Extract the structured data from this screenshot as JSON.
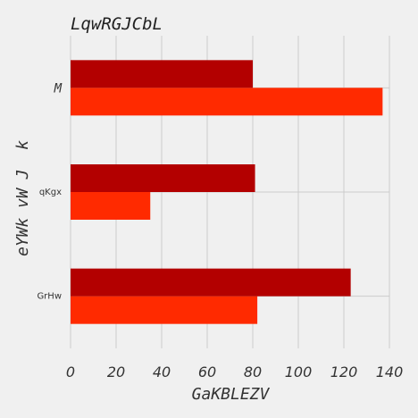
{
  "chart_data": {
    "type": "bar",
    "orientation": "horizontal",
    "title": "LqwRGJCbL",
    "xlabel": "GaKBLEZV",
    "ylabel": "eYWk vW J  k",
    "categories": [
      "GrHw",
      "qKgx",
      "M"
    ],
    "series": [
      {
        "values": [
          82,
          35,
          137
        ],
        "color": "#ff2a00"
      },
      {
        "values": [
          123,
          81,
          80
        ],
        "color": "#b30000"
      }
    ],
    "xlim": [
      0,
      140
    ],
    "xticks": [
      0,
      20,
      40,
      60,
      80,
      100,
      120,
      140
    ],
    "grid": true,
    "legend": "none"
  }
}
